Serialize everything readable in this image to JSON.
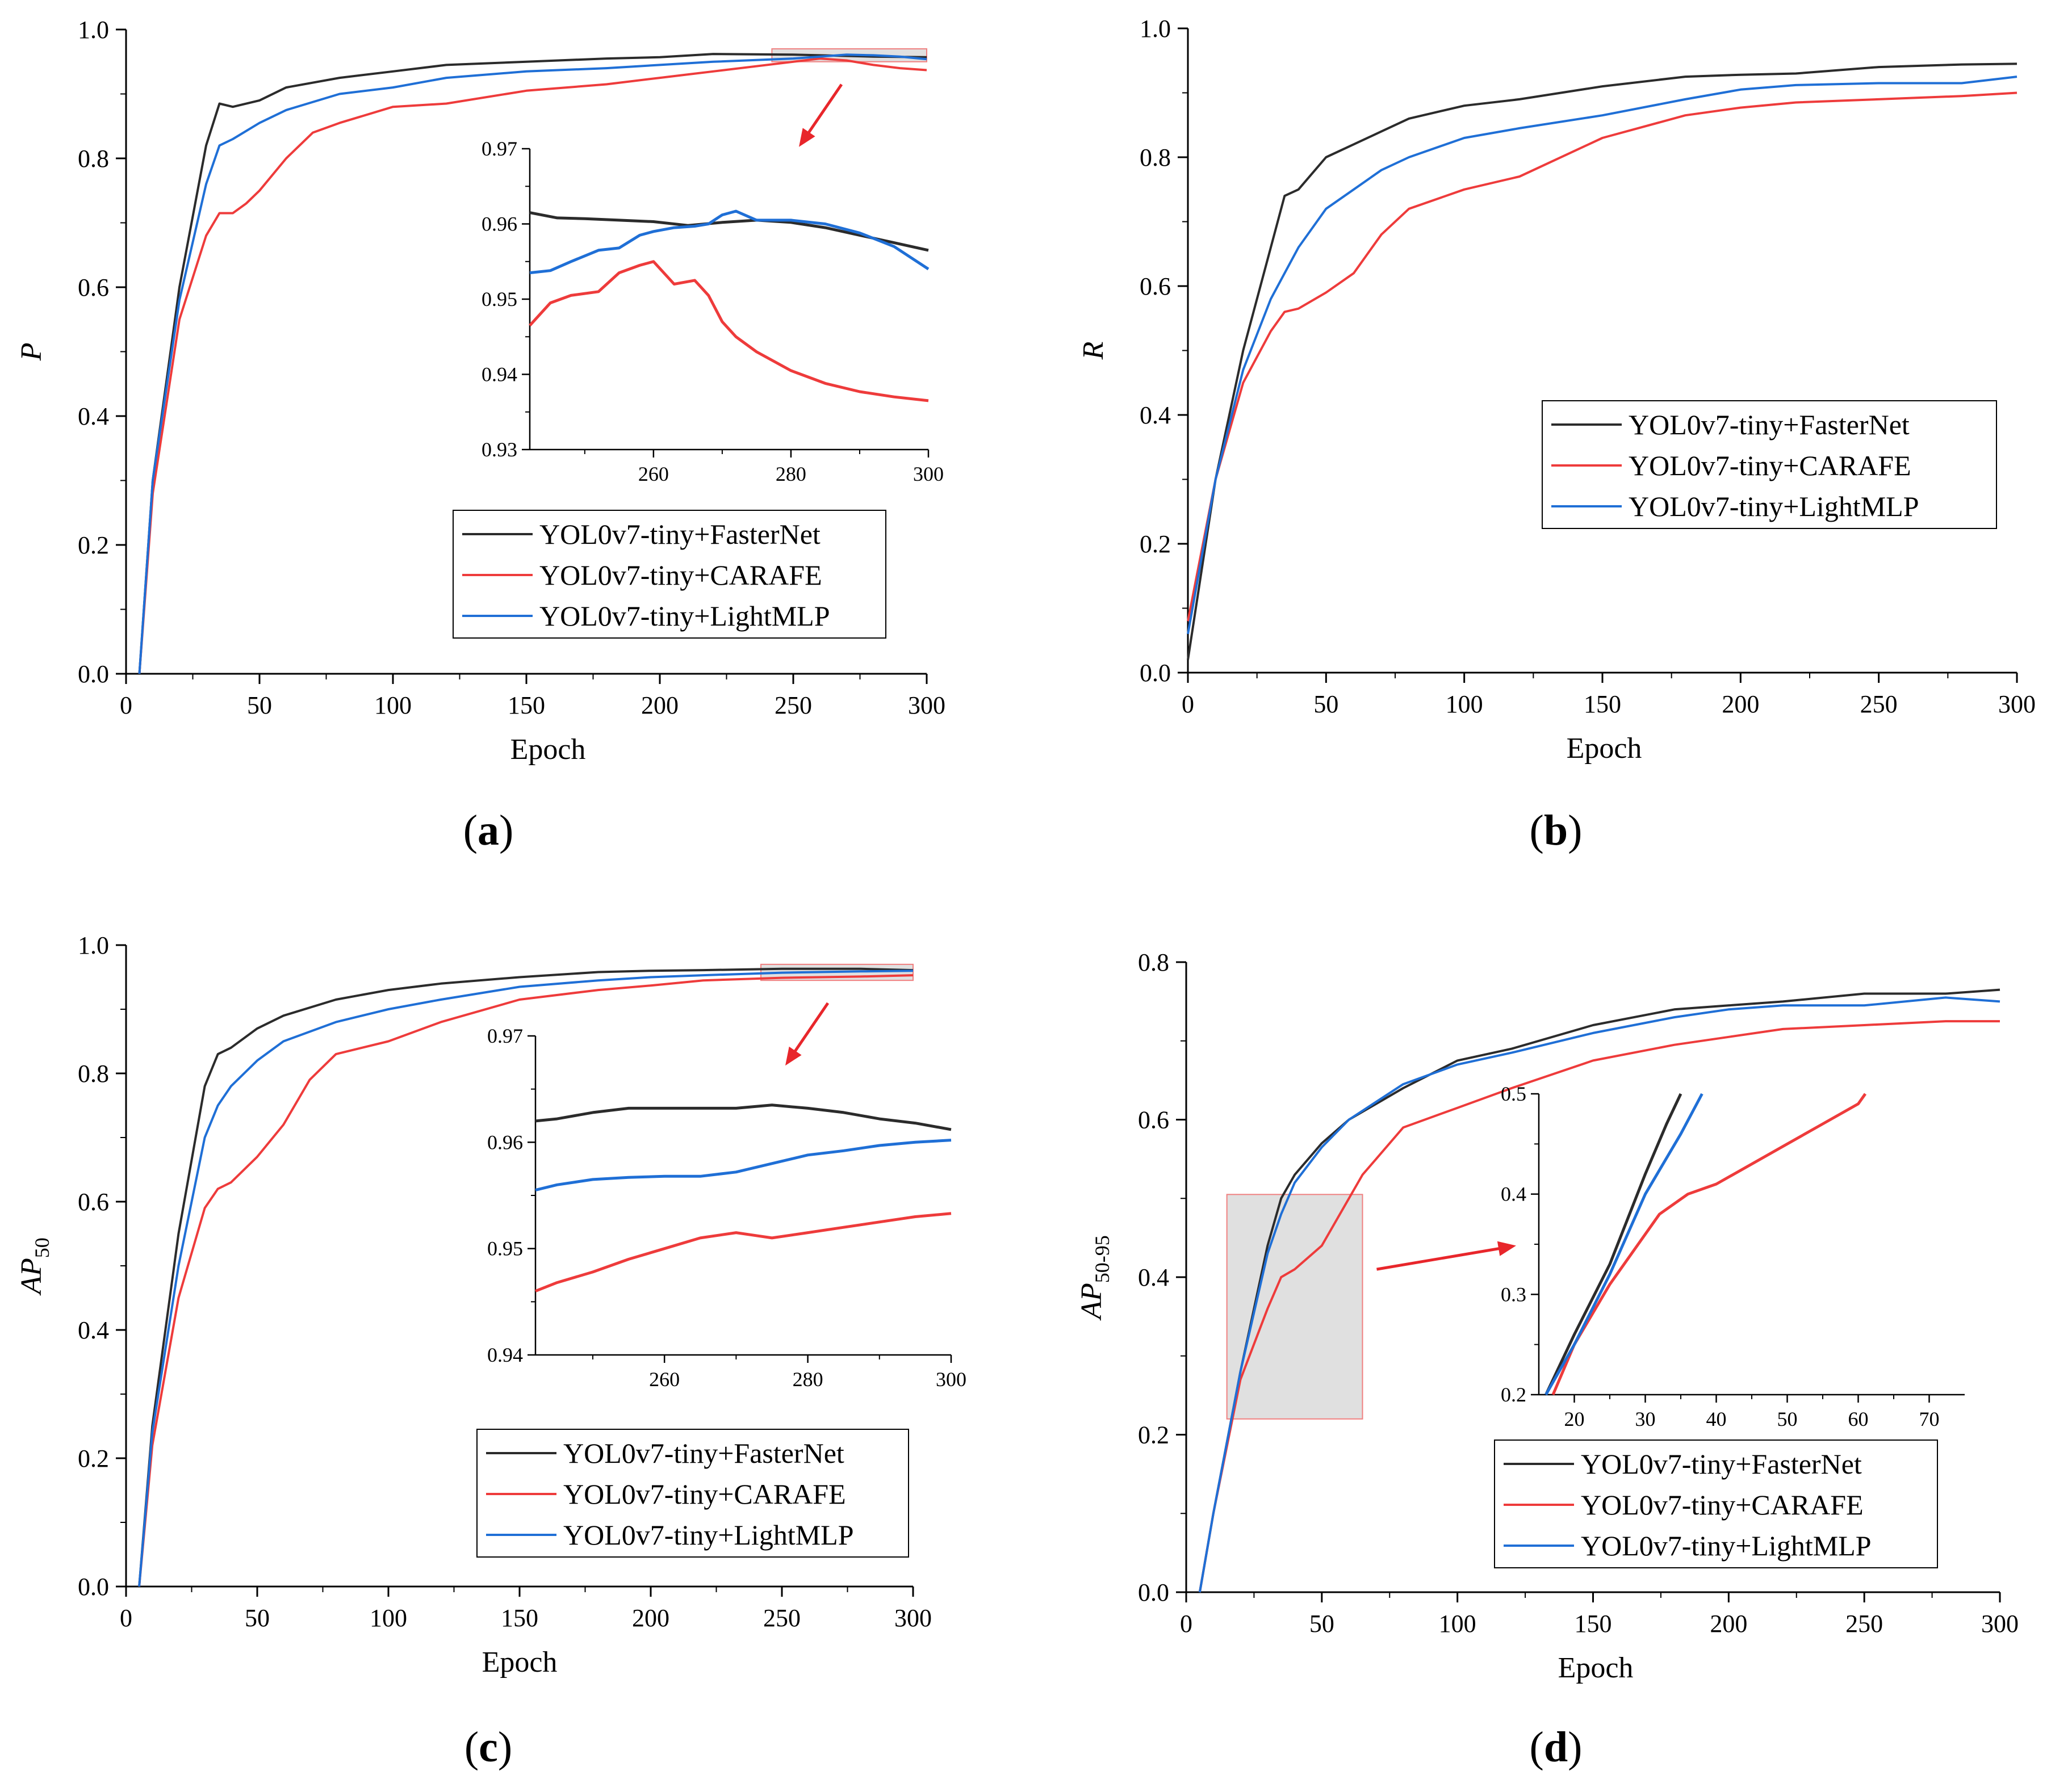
{
  "colors": {
    "fasternet": "#2b2b2b",
    "carafe": "#ee3b3b",
    "lightmlp": "#1f6fd6",
    "zoom_box": "#e0e0e0",
    "zoom_border": "#f08080",
    "arrow": "#e8262b"
  },
  "legend_labels": [
    "YOL0v7-tiny+FasterNet",
    "YOL0v7-tiny+CARAFE",
    "YOL0v7-tiny+LightMLP"
  ],
  "panels": [
    {
      "caption": "a",
      "xlabel": "Epoch",
      "ylabel_main": "P",
      "ylabel_sub": ""
    },
    {
      "caption": "b",
      "xlabel": "Epoch",
      "ylabel_main": "R",
      "ylabel_sub": ""
    },
    {
      "caption": "c",
      "xlabel": "Epoch",
      "ylabel_main": "AP",
      "ylabel_sub": "50"
    },
    {
      "caption": "d",
      "xlabel": "Epoch",
      "ylabel_main": "AP",
      "ylabel_sub": "50-95"
    }
  ],
  "chart_data": [
    {
      "type": "line",
      "panel": "a",
      "xlabel": "Epoch",
      "ylabel": "P",
      "xlim": [
        0,
        300
      ],
      "ylim": [
        0,
        1.0
      ],
      "xticks": [
        0,
        50,
        100,
        150,
        200,
        250,
        300
      ],
      "yticks": [
        0.0,
        0.2,
        0.4,
        0.6,
        0.8,
        1.0
      ],
      "legend_position": "lower-right",
      "series": [
        {
          "name": "YOL0v7-tiny+FasterNet",
          "x": [
            5,
            10,
            20,
            30,
            35,
            40,
            50,
            60,
            80,
            100,
            120,
            150,
            180,
            200,
            220,
            250,
            280,
            300
          ],
          "y": [
            0.0,
            0.3,
            0.6,
            0.82,
            0.885,
            0.88,
            0.89,
            0.91,
            0.925,
            0.935,
            0.945,
            0.95,
            0.955,
            0.957,
            0.962,
            0.961,
            0.958,
            0.957
          ]
        },
        {
          "name": "YOL0v7-tiny+CARAFE",
          "x": [
            5,
            10,
            20,
            30,
            35,
            40,
            45,
            50,
            60,
            70,
            80,
            100,
            120,
            150,
            180,
            200,
            220,
            250,
            260,
            270,
            280,
            290,
            300
          ],
          "y": [
            0.0,
            0.28,
            0.55,
            0.68,
            0.715,
            0.715,
            0.73,
            0.75,
            0.8,
            0.84,
            0.855,
            0.88,
            0.885,
            0.905,
            0.915,
            0.925,
            0.935,
            0.95,
            0.955,
            0.952,
            0.945,
            0.94,
            0.937
          ]
        },
        {
          "name": "YOL0v7-tiny+LightMLP",
          "x": [
            5,
            10,
            20,
            30,
            35,
            40,
            50,
            60,
            80,
            100,
            120,
            150,
            180,
            200,
            220,
            250,
            260,
            270,
            280,
            290,
            300
          ],
          "y": [
            0.0,
            0.3,
            0.58,
            0.76,
            0.82,
            0.83,
            0.855,
            0.875,
            0.9,
            0.91,
            0.925,
            0.935,
            0.94,
            0.945,
            0.95,
            0.955,
            0.958,
            0.961,
            0.96,
            0.958,
            0.954
          ]
        }
      ],
      "inset": {
        "xlim": [
          242,
          300
        ],
        "ylim": [
          0.93,
          0.97
        ],
        "xticks": [
          260,
          280,
          300
        ],
        "yticks": [
          0.93,
          0.94,
          0.95,
          0.96,
          0.97
        ],
        "source_range": {
          "x": [
            242,
            300
          ],
          "y": [
            0.95,
            0.97
          ]
        },
        "series": [
          {
            "x": [
              242,
              246,
              250,
              255,
              260,
              265,
              270,
              275,
              280,
              285,
              290,
              295,
              300
            ],
            "y": [
              0.9615,
              0.9608,
              0.9607,
              0.9605,
              0.9603,
              0.9598,
              0.9602,
              0.9605,
              0.9602,
              0.9595,
              0.9585,
              0.9575,
              0.9565
            ]
          },
          {
            "x": [
              242,
              245,
              248,
              252,
              255,
              258,
              260,
              263,
              266,
              268,
              270,
              272,
              275,
              280,
              285,
              290,
              295,
              300
            ],
            "y": [
              0.9465,
              0.9495,
              0.9505,
              0.951,
              0.9535,
              0.9545,
              0.955,
              0.952,
              0.9525,
              0.9505,
              0.947,
              0.945,
              0.943,
              0.9405,
              0.9388,
              0.9377,
              0.937,
              0.9365
            ]
          },
          {
            "x": [
              242,
              245,
              248,
              252,
              255,
              258,
              260,
              263,
              266,
              268,
              270,
              272,
              275,
              280,
              285,
              290,
              295,
              300
            ],
            "y": [
              0.9535,
              0.9538,
              0.955,
              0.9565,
              0.9568,
              0.9585,
              0.959,
              0.9595,
              0.9597,
              0.96,
              0.9612,
              0.9617,
              0.9605,
              0.9605,
              0.96,
              0.9588,
              0.957,
              0.954
            ]
          }
        ]
      }
    },
    {
      "type": "line",
      "panel": "b",
      "xlabel": "Epoch",
      "ylabel": "R",
      "xlim": [
        0,
        300
      ],
      "ylim": [
        0,
        1.0
      ],
      "xticks": [
        0,
        50,
        100,
        150,
        200,
        250,
        300
      ],
      "yticks": [
        0.0,
        0.2,
        0.4,
        0.6,
        0.8,
        1.0
      ],
      "legend_position": "center-right",
      "series": [
        {
          "name": "YOL0v7-tiny+FasterNet",
          "x": [
            0,
            10,
            20,
            30,
            35,
            40,
            50,
            60,
            70,
            80,
            100,
            120,
            150,
            180,
            200,
            220,
            250,
            280,
            300
          ],
          "y": [
            0.02,
            0.3,
            0.5,
            0.66,
            0.74,
            0.75,
            0.8,
            0.82,
            0.84,
            0.86,
            0.88,
            0.89,
            0.91,
            0.925,
            0.928,
            0.93,
            0.94,
            0.944,
            0.945
          ]
        },
        {
          "name": "YOL0v7-tiny+CARAFE",
          "x": [
            0,
            10,
            20,
            30,
            35,
            40,
            50,
            60,
            70,
            80,
            100,
            120,
            150,
            180,
            200,
            220,
            250,
            280,
            300
          ],
          "y": [
            0.08,
            0.3,
            0.45,
            0.53,
            0.56,
            0.565,
            0.59,
            0.62,
            0.68,
            0.72,
            0.75,
            0.77,
            0.83,
            0.865,
            0.877,
            0.885,
            0.89,
            0.895,
            0.9
          ]
        },
        {
          "name": "YOL0v7-tiny+LightMLP",
          "x": [
            0,
            10,
            20,
            30,
            35,
            40,
            50,
            60,
            70,
            80,
            100,
            120,
            150,
            180,
            200,
            220,
            250,
            280,
            300
          ],
          "y": [
            0.06,
            0.3,
            0.47,
            0.58,
            0.62,
            0.66,
            0.72,
            0.75,
            0.78,
            0.8,
            0.83,
            0.845,
            0.865,
            0.89,
            0.905,
            0.912,
            0.915,
            0.915,
            0.925
          ]
        }
      ]
    },
    {
      "type": "line",
      "panel": "c",
      "xlabel": "Epoch",
      "ylabel": "AP50",
      "xlim": [
        0,
        300
      ],
      "ylim": [
        0,
        1.0
      ],
      "xticks": [
        0,
        50,
        100,
        150,
        200,
        250,
        300
      ],
      "yticks": [
        0.0,
        0.2,
        0.4,
        0.6,
        0.8,
        1.0
      ],
      "legend_position": "lower-right",
      "series": [
        {
          "name": "YOL0v7-tiny+FasterNet",
          "x": [
            5,
            10,
            20,
            30,
            35,
            40,
            50,
            60,
            80,
            100,
            120,
            150,
            180,
            200,
            220,
            250,
            280,
            300
          ],
          "y": [
            0.0,
            0.25,
            0.55,
            0.78,
            0.83,
            0.84,
            0.87,
            0.89,
            0.915,
            0.93,
            0.94,
            0.95,
            0.958,
            0.96,
            0.961,
            0.963,
            0.963,
            0.961
          ]
        },
        {
          "name": "YOL0v7-tiny+CARAFE",
          "x": [
            5,
            10,
            20,
            30,
            35,
            40,
            50,
            60,
            70,
            80,
            100,
            120,
            150,
            180,
            200,
            220,
            250,
            280,
            300
          ],
          "y": [
            0.0,
            0.22,
            0.45,
            0.59,
            0.62,
            0.63,
            0.67,
            0.72,
            0.79,
            0.83,
            0.85,
            0.88,
            0.915,
            0.93,
            0.937,
            0.945,
            0.949,
            0.951,
            0.953
          ]
        },
        {
          "name": "YOL0v7-tiny+LightMLP",
          "x": [
            5,
            10,
            20,
            30,
            35,
            40,
            50,
            60,
            80,
            100,
            120,
            150,
            180,
            200,
            220,
            250,
            280,
            300
          ],
          "y": [
            0.0,
            0.24,
            0.5,
            0.7,
            0.75,
            0.78,
            0.82,
            0.85,
            0.88,
            0.9,
            0.915,
            0.935,
            0.945,
            0.95,
            0.953,
            0.957,
            0.959,
            0.96
          ]
        }
      ],
      "inset": {
        "xlim": [
          242,
          300
        ],
        "ylim": [
          0.94,
          0.97
        ],
        "xticks": [
          260,
          280,
          300
        ],
        "yticks": [
          0.94,
          0.95,
          0.96,
          0.97
        ],
        "source_range": {
          "x": [
            242,
            300
          ],
          "y": [
            0.945,
            0.97
          ]
        },
        "series": [
          {
            "x": [
              242,
              245,
              250,
              255,
              260,
              265,
              270,
              275,
              280,
              285,
              290,
              295,
              300
            ],
            "y": [
              0.962,
              0.9622,
              0.9628,
              0.9632,
              0.9632,
              0.9632,
              0.9632,
              0.9635,
              0.9632,
              0.9628,
              0.9622,
              0.9618,
              0.9612
            ]
          },
          {
            "x": [
              242,
              245,
              250,
              255,
              260,
              265,
              270,
              272,
              275,
              280,
              285,
              290,
              295,
              300
            ],
            "y": [
              0.946,
              0.9468,
              0.9478,
              0.949,
              0.95,
              0.951,
              0.9515,
              0.9513,
              0.951,
              0.9515,
              0.952,
              0.9525,
              0.953,
              0.9533
            ]
          },
          {
            "x": [
              242,
              245,
              250,
              255,
              260,
              265,
              270,
              275,
              280,
              285,
              290,
              295,
              300
            ],
            "y": [
              0.9555,
              0.956,
              0.9565,
              0.9567,
              0.9568,
              0.9568,
              0.9572,
              0.958,
              0.9588,
              0.9592,
              0.9597,
              0.96,
              0.9602
            ]
          }
        ]
      }
    },
    {
      "type": "line",
      "panel": "d",
      "xlabel": "Epoch",
      "ylabel": "AP50-95",
      "xlim": [
        0,
        300
      ],
      "ylim": [
        0,
        0.8
      ],
      "xticks": [
        0,
        50,
        100,
        150,
        200,
        250,
        300
      ],
      "yticks": [
        0.0,
        0.2,
        0.4,
        0.6,
        0.8
      ],
      "legend_position": "lower-right",
      "series": [
        {
          "name": "YOL0v7-tiny+FasterNet",
          "x": [
            5,
            10,
            20,
            30,
            35,
            40,
            50,
            60,
            80,
            100,
            120,
            150,
            180,
            200,
            220,
            250,
            280,
            300
          ],
          "y": [
            0.0,
            0.1,
            0.28,
            0.44,
            0.5,
            0.53,
            0.57,
            0.6,
            0.64,
            0.675,
            0.69,
            0.72,
            0.74,
            0.745,
            0.75,
            0.76,
            0.76,
            0.765
          ]
        },
        {
          "name": "YOL0v7-tiny+CARAFE",
          "x": [
            5,
            10,
            20,
            30,
            35,
            40,
            50,
            60,
            65,
            70,
            80,
            100,
            120,
            150,
            180,
            200,
            220,
            250,
            280,
            300
          ],
          "y": [
            0.0,
            0.1,
            0.27,
            0.36,
            0.4,
            0.41,
            0.44,
            0.5,
            0.53,
            0.55,
            0.59,
            0.615,
            0.64,
            0.675,
            0.695,
            0.705,
            0.715,
            0.72,
            0.725,
            0.725
          ]
        },
        {
          "name": "YOL0v7-tiny+LightMLP",
          "x": [
            5,
            10,
            20,
            30,
            35,
            40,
            50,
            60,
            80,
            100,
            120,
            150,
            180,
            200,
            220,
            250,
            280,
            300
          ],
          "y": [
            0.0,
            0.1,
            0.28,
            0.43,
            0.48,
            0.52,
            0.565,
            0.6,
            0.645,
            0.67,
            0.685,
            0.71,
            0.73,
            0.74,
            0.745,
            0.745,
            0.755,
            0.75
          ]
        }
      ],
      "inset": {
        "xlim": [
          15,
          75
        ],
        "ylim": [
          0.2,
          0.5
        ],
        "xticks": [
          20,
          30,
          40,
          50,
          60,
          70
        ],
        "yticks": [
          0.2,
          0.3,
          0.4,
          0.5
        ],
        "source_range": {
          "x": [
            15,
            65
          ],
          "y": [
            0.22,
            0.505
          ]
        },
        "series": [
          {
            "x": [
              16,
              20,
              25,
              30,
              33,
              35
            ],
            "y": [
              0.2,
              0.26,
              0.33,
              0.42,
              0.47,
              0.5
            ]
          },
          {
            "x": [
              17,
              20,
              25,
              30,
              32,
              36,
              40,
              45,
              50,
              55,
              60,
              61
            ],
            "y": [
              0.2,
              0.25,
              0.31,
              0.36,
              0.38,
              0.4,
              0.41,
              0.43,
              0.45,
              0.47,
              0.49,
              0.5
            ]
          },
          {
            "x": [
              16,
              20,
              25,
              30,
              35,
              38
            ],
            "y": [
              0.2,
              0.25,
              0.32,
              0.4,
              0.46,
              0.5
            ]
          }
        ]
      }
    }
  ]
}
